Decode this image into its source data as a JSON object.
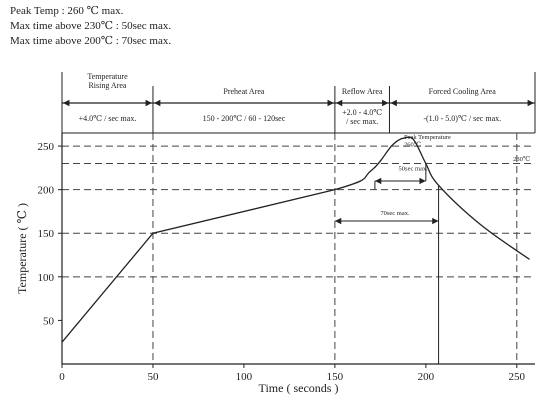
{
  "specs": [
    "Peak Temp : 260 ℃ max.",
    "Max time above 230℃ : 50sec max.",
    "Max time above 200℃ : 70sec max."
  ],
  "chart_data": {
    "type": "line",
    "xlabel": "Time ( seconds )",
    "ylabel": "Temperature ( ℃ )",
    "xlim": [
      0,
      260
    ],
    "ylim": [
      0,
      265
    ],
    "xticks": [
      0,
      50,
      100,
      150,
      200,
      250
    ],
    "yticks": [
      50,
      100,
      150,
      200,
      250
    ],
    "grid_x": [
      50,
      150,
      250
    ],
    "grid_y": [
      100,
      150,
      200,
      230,
      250
    ],
    "series": [
      {
        "x": [
          0,
          50,
          150,
          170,
          182,
          190,
          194,
          200,
          207,
          230,
          257
        ],
        "y": [
          25,
          150,
          200,
          222,
          252,
          260,
          255,
          230,
          205,
          160,
          120
        ]
      }
    ],
    "zones": [
      {
        "title": "Temperature\nRising Area",
        "rate": "+4.0℃ / sec max.",
        "x0": 0,
        "x1": 50
      },
      {
        "title": "Preheat Area",
        "rate": "150 - 200℃ / 60 - 120sec",
        "x0": 50,
        "x1": 150
      },
      {
        "title": "Reflow Area",
        "rate": "+2.0 - 4.0℃\n/ sec max.",
        "x0": 150,
        "x1": 180
      },
      {
        "title": "Forced Cooling Area",
        "rate": "-(1.0 - 5.0)℃ / sec max.",
        "x0": 180,
        "x1": 260
      }
    ],
    "annotations": [
      {
        "text": "Peak Temperature\n260℃",
        "x": 188,
        "y": 258
      },
      {
        "text": "230℃",
        "x": 248,
        "y": 233
      },
      {
        "text": "50sec max.",
        "x": 185,
        "y": 222
      },
      {
        "text": "70sec max.",
        "x": 175,
        "y": 171
      }
    ],
    "spans": [
      {
        "x0": 172,
        "x1": 200,
        "y": 210
      },
      {
        "x0": 150,
        "x1": 207,
        "y": 164
      }
    ],
    "drops": [
      {
        "x": 172,
        "y0": 200,
        "y1": 210
      },
      {
        "x": 200,
        "y0": 230,
        "y1": 210
      },
      {
        "x": 207,
        "y0": 0,
        "y1": 205
      }
    ]
  }
}
